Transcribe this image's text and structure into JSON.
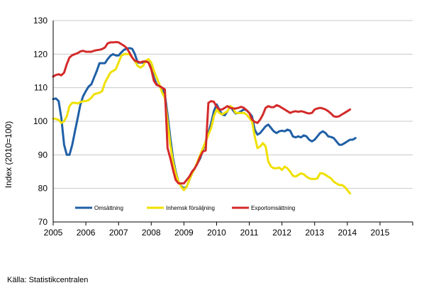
{
  "chart_data": {
    "type": "line",
    "ylabel": "Index (2010=100)",
    "ylim": [
      70,
      130
    ],
    "yticks": [
      70,
      80,
      90,
      100,
      110,
      120,
      130
    ],
    "xlim": [
      2005,
      2016
    ],
    "xticks": [
      2005,
      2006,
      2007,
      2008,
      2009,
      2010,
      2011,
      2012,
      2013,
      2014,
      2015
    ],
    "grid": "horizontal",
    "legend": "bottom-left",
    "series": [
      {
        "name": "Omsättning",
        "color": "#1f5fa6",
        "values": [
          106.6,
          106.8,
          106,
          101,
          93,
          90,
          90,
          93,
          97,
          101,
          105,
          107.5,
          109,
          110.3,
          111,
          113,
          115,
          117.3,
          117.3,
          117.3,
          118.5,
          119.5,
          120,
          119.6,
          119.6,
          120.5,
          121.3,
          121.6,
          121.8,
          121.6,
          120,
          117.5,
          117.5,
          117.5,
          118,
          117.5,
          116,
          113,
          111,
          110.5,
          110,
          108,
          102,
          95,
          89,
          85,
          82,
          80.7,
          80,
          80.5,
          82.5,
          84.5,
          86,
          87.5,
          89,
          91.5,
          94,
          96.5,
          99.5,
          103,
          105,
          103.5,
          102,
          101.8,
          103,
          104.5,
          103.3,
          102.3,
          102.5,
          103,
          103.5,
          103.3,
          102.5,
          101.5,
          97.5,
          96,
          96.5,
          97.5,
          98.5,
          99,
          98,
          97,
          96.5,
          97,
          97.2,
          97,
          97.5,
          97.2,
          95.5,
          95.2,
          95.5,
          95.2,
          95.8,
          95.5,
          94.5,
          94,
          94.5,
          95.5,
          96.5,
          97,
          96.5,
          95.5,
          95.3,
          95,
          94,
          93,
          93,
          93.5,
          94,
          94.5,
          94.5,
          95
        ]
      },
      {
        "name": "Inhemsk försäljning",
        "color": "#f0e000",
        "values": [
          100.8,
          100.7,
          100.4,
          99.5,
          100,
          101.5,
          104.5,
          105.5,
          105.5,
          105.3,
          105.7,
          106,
          106,
          106.3,
          107,
          108,
          108.3,
          108.5,
          109,
          111.5,
          113,
          114.5,
          115,
          115.5,
          117.5,
          119.5,
          120,
          120,
          120,
          119,
          118,
          116.5,
          116,
          116.5,
          118,
          118.5,
          117.5,
          115,
          113,
          111,
          108.5,
          107,
          100,
          93,
          88,
          84.5,
          82,
          80.5,
          79.5,
          80.5,
          82.5,
          84.5,
          86,
          88,
          90,
          92,
          94,
          96,
          98,
          101.5,
          103.5,
          102.5,
          102,
          102.5,
          103,
          104.5,
          104,
          102.5,
          102.5,
          102.5,
          102.5,
          102,
          101,
          100,
          95.5,
          92,
          92.5,
          93.5,
          92.5,
          88,
          86.5,
          86,
          86,
          86.2,
          85.5,
          86.5,
          86,
          85,
          83.8,
          83.5,
          84,
          84.5,
          84.2,
          83.5,
          83,
          82.8,
          82.8,
          83,
          84.5,
          84.5,
          84,
          83.5,
          83,
          82,
          81.5,
          81,
          81,
          80.5,
          79.5,
          78.5
        ]
      },
      {
        "name": "Exportomsättning",
        "color": "#d42a2a",
        "values": [
          113.3,
          113.8,
          114,
          113.7,
          114.5,
          117,
          119,
          119.7,
          120,
          120.3,
          120.8,
          121,
          120.7,
          120.7,
          120.7,
          121,
          121.2,
          121.3,
          121.5,
          122,
          123.2,
          123.5,
          123.5,
          123.6,
          123.5,
          123,
          122.5,
          121.8,
          120.5,
          119,
          118,
          117.8,
          117.5,
          117.8,
          117.8,
          117.5,
          115.5,
          112,
          110.8,
          110.5,
          110,
          109.5,
          92,
          89,
          85.5,
          82.5,
          81.5,
          81.5,
          81.5,
          82.5,
          83.5,
          85,
          86,
          87.5,
          89.5,
          91,
          91.3,
          105.5,
          106,
          105.8,
          104.3,
          103.5,
          103.5,
          104,
          104.5,
          104,
          103.8,
          103.8,
          104,
          104.3,
          104,
          103.3,
          102.5,
          100.5,
          99.8,
          99.5,
          100.5,
          102,
          104,
          104.5,
          104.2,
          104.2,
          104.8,
          104.5,
          104,
          103.5,
          103,
          102.5,
          102.8,
          103,
          102.8,
          103,
          102.8,
          102.5,
          102.3,
          102.5,
          103.5,
          103.8,
          104,
          103.8,
          103.5,
          103,
          102.3,
          101.5,
          101.3,
          101.5,
          102,
          102.5,
          103,
          103.5
        ]
      }
    ]
  },
  "source_text": "Källa: Statistikcentralen"
}
